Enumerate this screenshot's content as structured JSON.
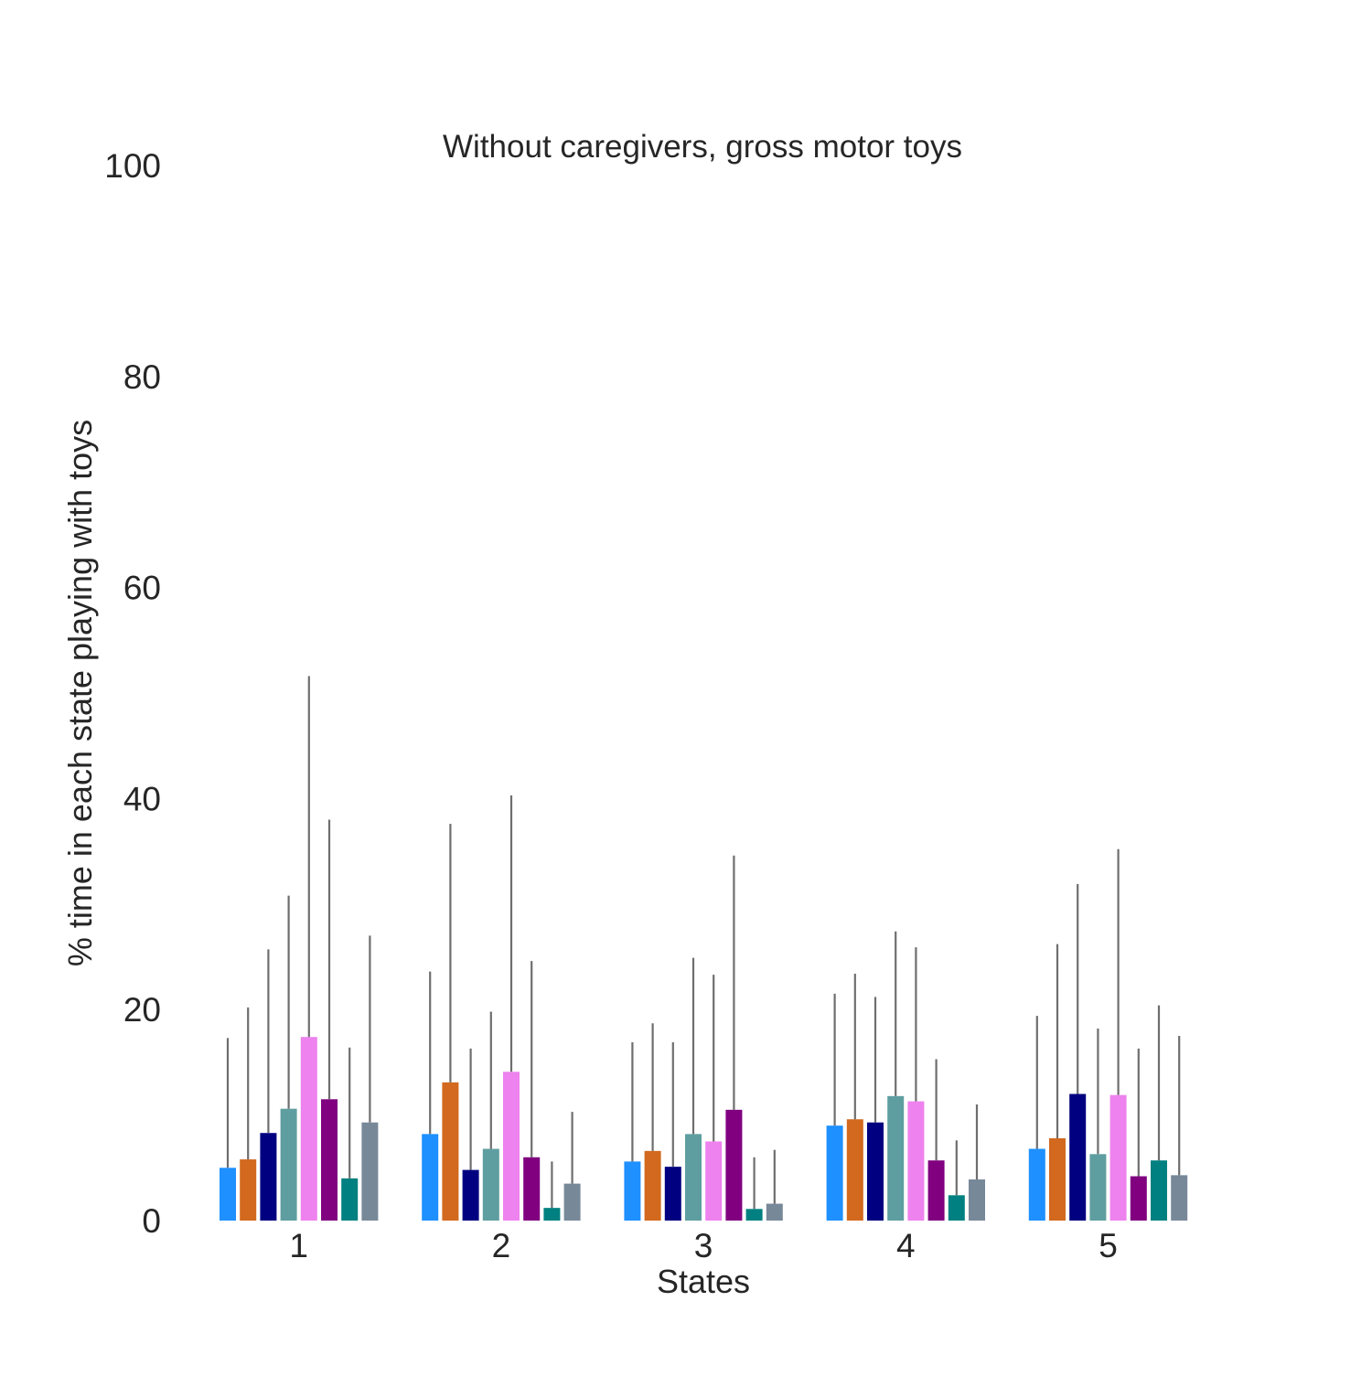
{
  "chart_data": {
    "type": "bar",
    "title": "Without caregivers, gross motor toys",
    "xlabel": "States",
    "ylabel": "% time in each state playing with toys",
    "categories": [
      "1",
      "2",
      "3",
      "4",
      "5"
    ],
    "ylim": [
      0,
      100
    ],
    "yticks": [
      "0",
      "20",
      "40",
      "60",
      "80",
      "100"
    ],
    "grid": false,
    "legend": "none",
    "series": [
      {
        "color": "#1E90FF",
        "values": [
          5.0,
          8.2,
          5.6,
          9.0,
          6.8
        ],
        "err_top": [
          17.3,
          23.6,
          16.9,
          21.5,
          19.4
        ]
      },
      {
        "color": "#D2691E",
        "values": [
          5.8,
          13.1,
          6.6,
          9.6,
          7.8
        ],
        "err_top": [
          20.2,
          37.6,
          18.7,
          23.4,
          26.2
        ]
      },
      {
        "color": "#000080",
        "values": [
          8.3,
          4.8,
          5.1,
          9.3,
          12.0
        ],
        "err_top": [
          25.7,
          16.3,
          16.9,
          21.2,
          31.9
        ]
      },
      {
        "color": "#5F9EA0",
        "values": [
          10.6,
          6.8,
          8.2,
          11.8,
          6.3
        ],
        "err_top": [
          30.8,
          19.8,
          24.9,
          27.4,
          18.2
        ]
      },
      {
        "color": "#EE82EE",
        "values": [
          17.4,
          14.1,
          7.5,
          11.3,
          11.9
        ],
        "err_top": [
          51.6,
          40.3,
          23.3,
          25.9,
          35.2
        ]
      },
      {
        "color": "#800080",
        "values": [
          11.5,
          6.0,
          10.5,
          5.7,
          4.2
        ],
        "err_top": [
          38.0,
          24.6,
          34.6,
          15.3,
          16.3
        ]
      },
      {
        "color": "#008080",
        "values": [
          4.0,
          1.2,
          1.1,
          2.4,
          5.7
        ],
        "err_top": [
          16.4,
          5.6,
          6.0,
          7.6,
          20.4
        ]
      },
      {
        "color": "#778899",
        "values": [
          9.3,
          3.5,
          1.6,
          3.9,
          4.3
        ],
        "err_top": [
          27.0,
          10.3,
          6.7,
          11.0,
          17.5
        ]
      }
    ]
  }
}
